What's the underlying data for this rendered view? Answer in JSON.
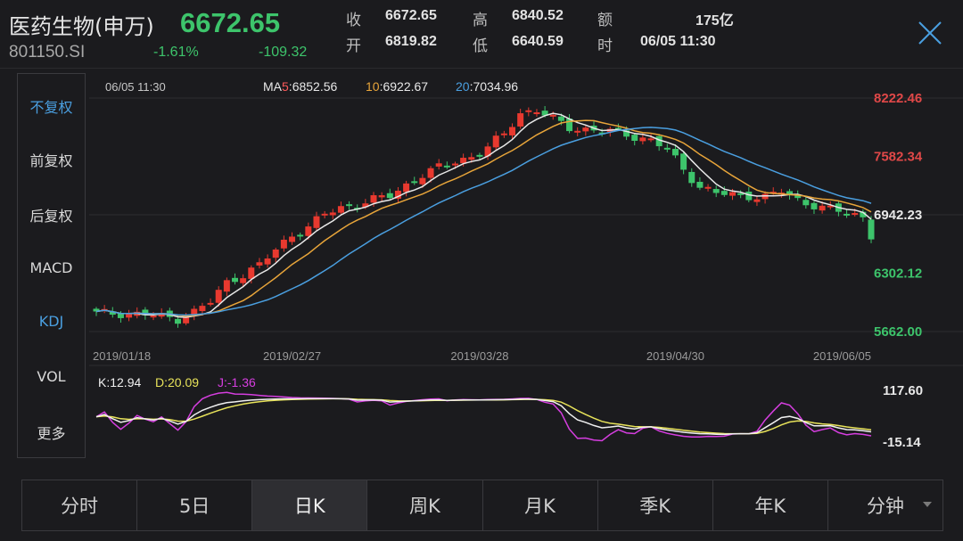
{
  "header": {
    "name": "医药生物(申万)",
    "code": "801150.SI",
    "price": "6672.65",
    "change_pct": "-1.61%",
    "change": "-109.32",
    "stats": [
      {
        "label": "收",
        "value": "6672.65"
      },
      {
        "label": "高",
        "value": "6840.52"
      },
      {
        "label": "额",
        "value": "175亿"
      },
      {
        "label": "开",
        "value": "6819.82"
      },
      {
        "label": "低",
        "value": "6640.59"
      },
      {
        "label": "时",
        "value": "06/05 11:30"
      }
    ]
  },
  "sidebar": {
    "items": [
      {
        "label": "不复权",
        "active": true
      },
      {
        "label": "前复权",
        "active": false
      },
      {
        "label": "后复权",
        "active": false
      },
      {
        "label": "MACD",
        "active": false
      },
      {
        "label": "KDJ",
        "active": true
      },
      {
        "label": "VOL",
        "active": false
      },
      {
        "label": "更多",
        "active": false
      }
    ]
  },
  "tabs": [
    {
      "label": "分时",
      "active": false
    },
    {
      "label": "5日",
      "active": false
    },
    {
      "label": "日K",
      "active": true
    },
    {
      "label": "周K",
      "active": false
    },
    {
      "label": "月K",
      "active": false
    },
    {
      "label": "季K",
      "active": false
    },
    {
      "label": "年K",
      "active": false
    },
    {
      "label": "分钟",
      "active": false
    }
  ],
  "chart_data": [
    {
      "type": "candlestick",
      "cursor_time": "06/05 11:30",
      "ma_legend": [
        {
          "prefix": "MA",
          "period": "5",
          "value": "6852.56",
          "color": "#e8e8e8",
          "period_color": "#ff5a5a"
        },
        {
          "prefix": "",
          "period": "10",
          "value": "6922.67",
          "color": "#e8e8e8",
          "period_color": "#e8a53a"
        },
        {
          "prefix": "",
          "period": "20",
          "value": "7034.96",
          "color": "#e8e8e8",
          "period_color": "#4a9fe0"
        }
      ],
      "y_ticks": [
        {
          "value": 8222.46,
          "label": "8222.46",
          "color": "#e04848"
        },
        {
          "value": 7582.34,
          "label": "7582.34",
          "color": "#e04848"
        },
        {
          "value": 6942.23,
          "label": "6942.23",
          "color": "#e8e8e8"
        },
        {
          "value": 6302.12,
          "label": "6302.12",
          "color": "#3dc46b"
        },
        {
          "value": 5662.0,
          "label": "5662.00",
          "color": "#3dc46b"
        }
      ],
      "ylim": [
        5662.0,
        8222.46
      ],
      "x_ticks": [
        {
          "index": 0,
          "label": "2019/01/18"
        },
        {
          "index": 24,
          "label": "2019/02/27"
        },
        {
          "index": 47,
          "label": "2019/03/28"
        },
        {
          "index": 71,
          "label": "2019/04/30"
        },
        {
          "index": 95,
          "label": "2019/06/05"
        }
      ],
      "close_anchors": [
        [
          0,
          5862
        ],
        [
          3,
          5860
        ],
        [
          6,
          5852
        ],
        [
          8,
          5825
        ],
        [
          10,
          5800
        ],
        [
          12,
          5880
        ],
        [
          14,
          5990
        ],
        [
          16,
          6200
        ],
        [
          18,
          6290
        ],
        [
          20,
          6390
        ],
        [
          22,
          6560
        ],
        [
          24,
          6720
        ],
        [
          26,
          6810
        ],
        [
          28,
          6950
        ],
        [
          30,
          7020
        ],
        [
          32,
          7060
        ],
        [
          34,
          7110
        ],
        [
          36,
          7150
        ],
        [
          38,
          7270
        ],
        [
          40,
          7380
        ],
        [
          42,
          7460
        ],
        [
          44,
          7530
        ],
        [
          46,
          7580
        ],
        [
          48,
          7680
        ],
        [
          50,
          7830
        ],
        [
          52,
          8060
        ],
        [
          54,
          8090
        ],
        [
          56,
          7990
        ],
        [
          58,
          7900
        ],
        [
          60,
          7880
        ],
        [
          62,
          7860
        ],
        [
          64,
          7850
        ],
        [
          66,
          7800
        ],
        [
          68,
          7760
        ],
        [
          70,
          7660
        ],
        [
          72,
          7440
        ],
        [
          74,
          7250
        ],
        [
          76,
          7180
        ],
        [
          78,
          7160
        ],
        [
          80,
          7150
        ],
        [
          82,
          7140
        ],
        [
          84,
          7200
        ],
        [
          86,
          7100
        ],
        [
          88,
          7050
        ],
        [
          90,
          7000
        ],
        [
          92,
          6960
        ],
        [
          94,
          6920
        ],
        [
          95,
          6672.65
        ]
      ],
      "colors": {
        "up": "#e8392f",
        "down": "#3dc46b",
        "ma5": "#e8e8e8",
        "ma10": "#e8a53a",
        "ma20": "#4a9fe0"
      }
    },
    {
      "type": "line",
      "name": "KDJ",
      "legend": [
        {
          "label": "K",
          "value": "12.94",
          "color": "#f0f0f0"
        },
        {
          "label": "D",
          "value": "20.09",
          "color": "#e8e35a"
        },
        {
          "label": "J",
          "value": "-1.36",
          "color": "#d63ee0"
        }
      ],
      "y_ticks": [
        {
          "value": 117.6,
          "label": "117.60"
        },
        {
          "value": -15.14,
          "label": "-15.14"
        }
      ],
      "ylim": [
        -15.14,
        117.6
      ]
    }
  ]
}
